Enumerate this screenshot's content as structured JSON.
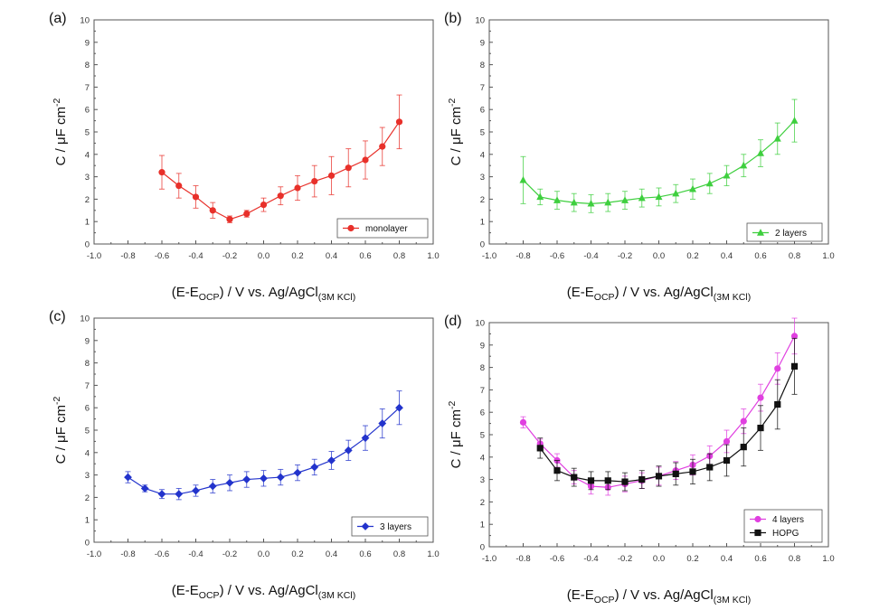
{
  "xlabel_main": "(E-E",
  "xlabel_sub1": "OCP",
  "xlabel_mid": ") / V vs. Ag/AgCl",
  "xlabel_sub2": "(3M KCl)",
  "ylabel_main": "C / μF cm",
  "ylabel_sup": "-2",
  "chart_data": [
    {
      "panel": "(a)",
      "type": "line",
      "xlim": [
        -1.0,
        1.0
      ],
      "ylim": [
        0,
        10
      ],
      "xticks": [
        "-1.0",
        "-0.8",
        "-0.6",
        "-0.4",
        "-0.2",
        "0.0",
        "0.2",
        "0.4",
        "0.6",
        "0.8",
        "1.0"
      ],
      "yticks": [
        "0",
        "1",
        "2",
        "3",
        "4",
        "5",
        "6",
        "7",
        "8",
        "9",
        "10"
      ],
      "legend_position": "bottom-right",
      "series": [
        {
          "name": "monolayer",
          "color": "#e8302a",
          "marker": "circle",
          "x": [
            -0.6,
            -0.5,
            -0.4,
            -0.3,
            -0.2,
            -0.1,
            0.0,
            0.1,
            0.2,
            0.3,
            0.4,
            0.5,
            0.6,
            0.7,
            0.8
          ],
          "y": [
            3.2,
            2.6,
            2.1,
            1.5,
            1.1,
            1.35,
            1.75,
            2.15,
            2.5,
            2.8,
            3.05,
            3.4,
            3.75,
            4.35,
            5.45
          ],
          "err": [
            0.75,
            0.55,
            0.5,
            0.35,
            0.15,
            0.15,
            0.3,
            0.4,
            0.55,
            0.7,
            0.85,
            0.85,
            0.85,
            0.85,
            1.2
          ]
        }
      ]
    },
    {
      "panel": "(b)",
      "type": "line",
      "xlim": [
        -1.0,
        1.0
      ],
      "ylim": [
        0,
        10
      ],
      "xticks": [
        "-1.0",
        "-0.8",
        "-0.6",
        "-0.4",
        "-0.2",
        "0.0",
        "0.2",
        "0.4",
        "0.6",
        "0.8",
        "1.0"
      ],
      "yticks": [
        "0",
        "1",
        "2",
        "3",
        "4",
        "5",
        "6",
        "7",
        "8",
        "9",
        "10"
      ],
      "legend_position": "bottom-right",
      "series": [
        {
          "name": "2 layers",
          "color": "#3ecf3e",
          "marker": "triangle",
          "x": [
            -0.8,
            -0.7,
            -0.6,
            -0.5,
            -0.4,
            -0.3,
            -0.2,
            -0.1,
            0.0,
            0.1,
            0.2,
            0.3,
            0.4,
            0.5,
            0.6,
            0.7,
            0.8
          ],
          "y": [
            2.85,
            2.1,
            1.95,
            1.85,
            1.8,
            1.85,
            1.95,
            2.05,
            2.1,
            2.25,
            2.45,
            2.7,
            3.05,
            3.5,
            4.05,
            4.7,
            5.5
          ],
          "err": [
            1.05,
            0.35,
            0.4,
            0.4,
            0.4,
            0.4,
            0.4,
            0.4,
            0.4,
            0.4,
            0.45,
            0.45,
            0.45,
            0.5,
            0.6,
            0.7,
            0.95
          ]
        }
      ]
    },
    {
      "panel": "(c)",
      "type": "line",
      "xlim": [
        -1.0,
        1.0
      ],
      "ylim": [
        0,
        10
      ],
      "xticks": [
        "-1.0",
        "-0.8",
        "-0.6",
        "-0.4",
        "-0.2",
        "0.0",
        "0.2",
        "0.4",
        "0.6",
        "0.8",
        "1.0"
      ],
      "yticks": [
        "0",
        "1",
        "2",
        "3",
        "4",
        "5",
        "6",
        "7",
        "8",
        "9",
        "10"
      ],
      "legend_position": "bottom-right",
      "series": [
        {
          "name": "3 layers",
          "color": "#2233cc",
          "marker": "diamond",
          "x": [
            -0.8,
            -0.7,
            -0.6,
            -0.5,
            -0.4,
            -0.3,
            -0.2,
            -0.1,
            0.0,
            0.1,
            0.2,
            0.3,
            0.4,
            0.5,
            0.6,
            0.7,
            0.8
          ],
          "y": [
            2.9,
            2.4,
            2.15,
            2.15,
            2.3,
            2.5,
            2.65,
            2.8,
            2.85,
            2.9,
            3.1,
            3.35,
            3.65,
            4.1,
            4.65,
            5.3,
            6.0
          ],
          "err": [
            0.25,
            0.15,
            0.2,
            0.25,
            0.25,
            0.3,
            0.35,
            0.35,
            0.35,
            0.35,
            0.35,
            0.35,
            0.4,
            0.45,
            0.55,
            0.65,
            0.75
          ]
        }
      ]
    },
    {
      "panel": "(d)",
      "type": "line",
      "xlim": [
        -1.0,
        1.0
      ],
      "ylim": [
        0,
        10
      ],
      "xticks": [
        "-1.0",
        "-0.8",
        "-0.6",
        "-0.4",
        "-0.2",
        "0.0",
        "0.2",
        "0.4",
        "0.6",
        "0.8",
        "1.0"
      ],
      "yticks": [
        "0",
        "1",
        "2",
        "3",
        "4",
        "5",
        "6",
        "7",
        "8",
        "9",
        "10"
      ],
      "legend_position": "bottom-right",
      "series": [
        {
          "name": "4 layers",
          "color": "#e040e0",
          "marker": "circle",
          "x": [
            -0.8,
            -0.7,
            -0.6,
            -0.5,
            -0.4,
            -0.3,
            -0.2,
            -0.1,
            0.0,
            0.1,
            0.2,
            0.3,
            0.4,
            0.5,
            0.6,
            0.7,
            0.8
          ],
          "y": [
            5.55,
            4.6,
            3.85,
            3.1,
            2.7,
            2.65,
            2.8,
            2.95,
            3.15,
            3.4,
            3.65,
            4.05,
            4.7,
            5.6,
            6.65,
            7.95,
            9.4
          ],
          "err": [
            0.25,
            0.2,
            0.3,
            0.3,
            0.35,
            0.35,
            0.35,
            0.35,
            0.4,
            0.4,
            0.45,
            0.45,
            0.5,
            0.55,
            0.6,
            0.7,
            0.8
          ]
        },
        {
          "name": "HOPG",
          "color": "#111111",
          "marker": "square",
          "x": [
            -0.7,
            -0.6,
            -0.5,
            -0.4,
            -0.3,
            -0.2,
            -0.1,
            0.0,
            0.1,
            0.2,
            0.3,
            0.4,
            0.5,
            0.6,
            0.7,
            0.8
          ],
          "y": [
            4.4,
            3.4,
            3.1,
            2.95,
            2.95,
            2.9,
            3.0,
            3.15,
            3.25,
            3.35,
            3.55,
            3.85,
            4.45,
            5.3,
            6.35,
            8.05
          ],
          "err": [
            0.45,
            0.45,
            0.4,
            0.4,
            0.4,
            0.4,
            0.4,
            0.45,
            0.5,
            0.55,
            0.6,
            0.7,
            0.85,
            1.0,
            1.1,
            1.25
          ]
        }
      ]
    }
  ]
}
